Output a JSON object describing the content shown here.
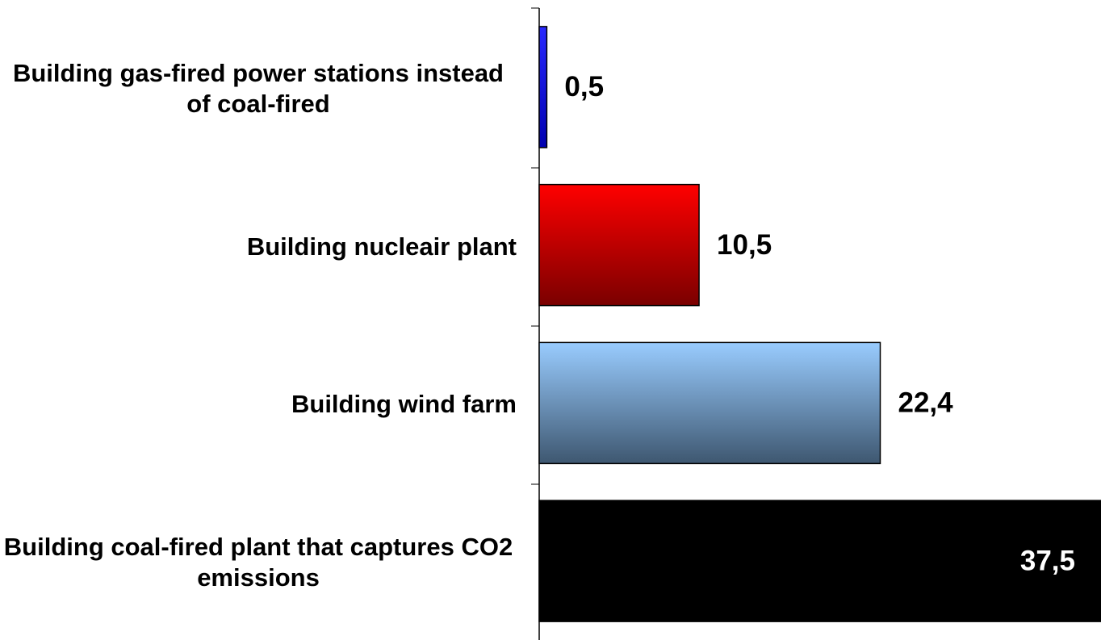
{
  "chart_data": {
    "type": "hbar",
    "categories": [
      "Building gas-fired power stations instead of coal-fired",
      "Building nucleair plant",
      "Building wind farm",
      "Building coal-fired plant that captures CO2 emissions"
    ],
    "values": [
      0.5,
      10.5,
      22.4,
      37.5
    ],
    "value_labels": [
      "0,5",
      "10,5",
      "22,4",
      "37,5"
    ],
    "colors": [
      [
        "#2a2aff",
        "#0000b0"
      ],
      [
        "#ff0000",
        "#7a0000"
      ],
      [
        "#99ccff",
        "#3e5770"
      ],
      [
        "#000000",
        "#000000"
      ]
    ],
    "xlim": [
      0,
      36.9
    ]
  }
}
